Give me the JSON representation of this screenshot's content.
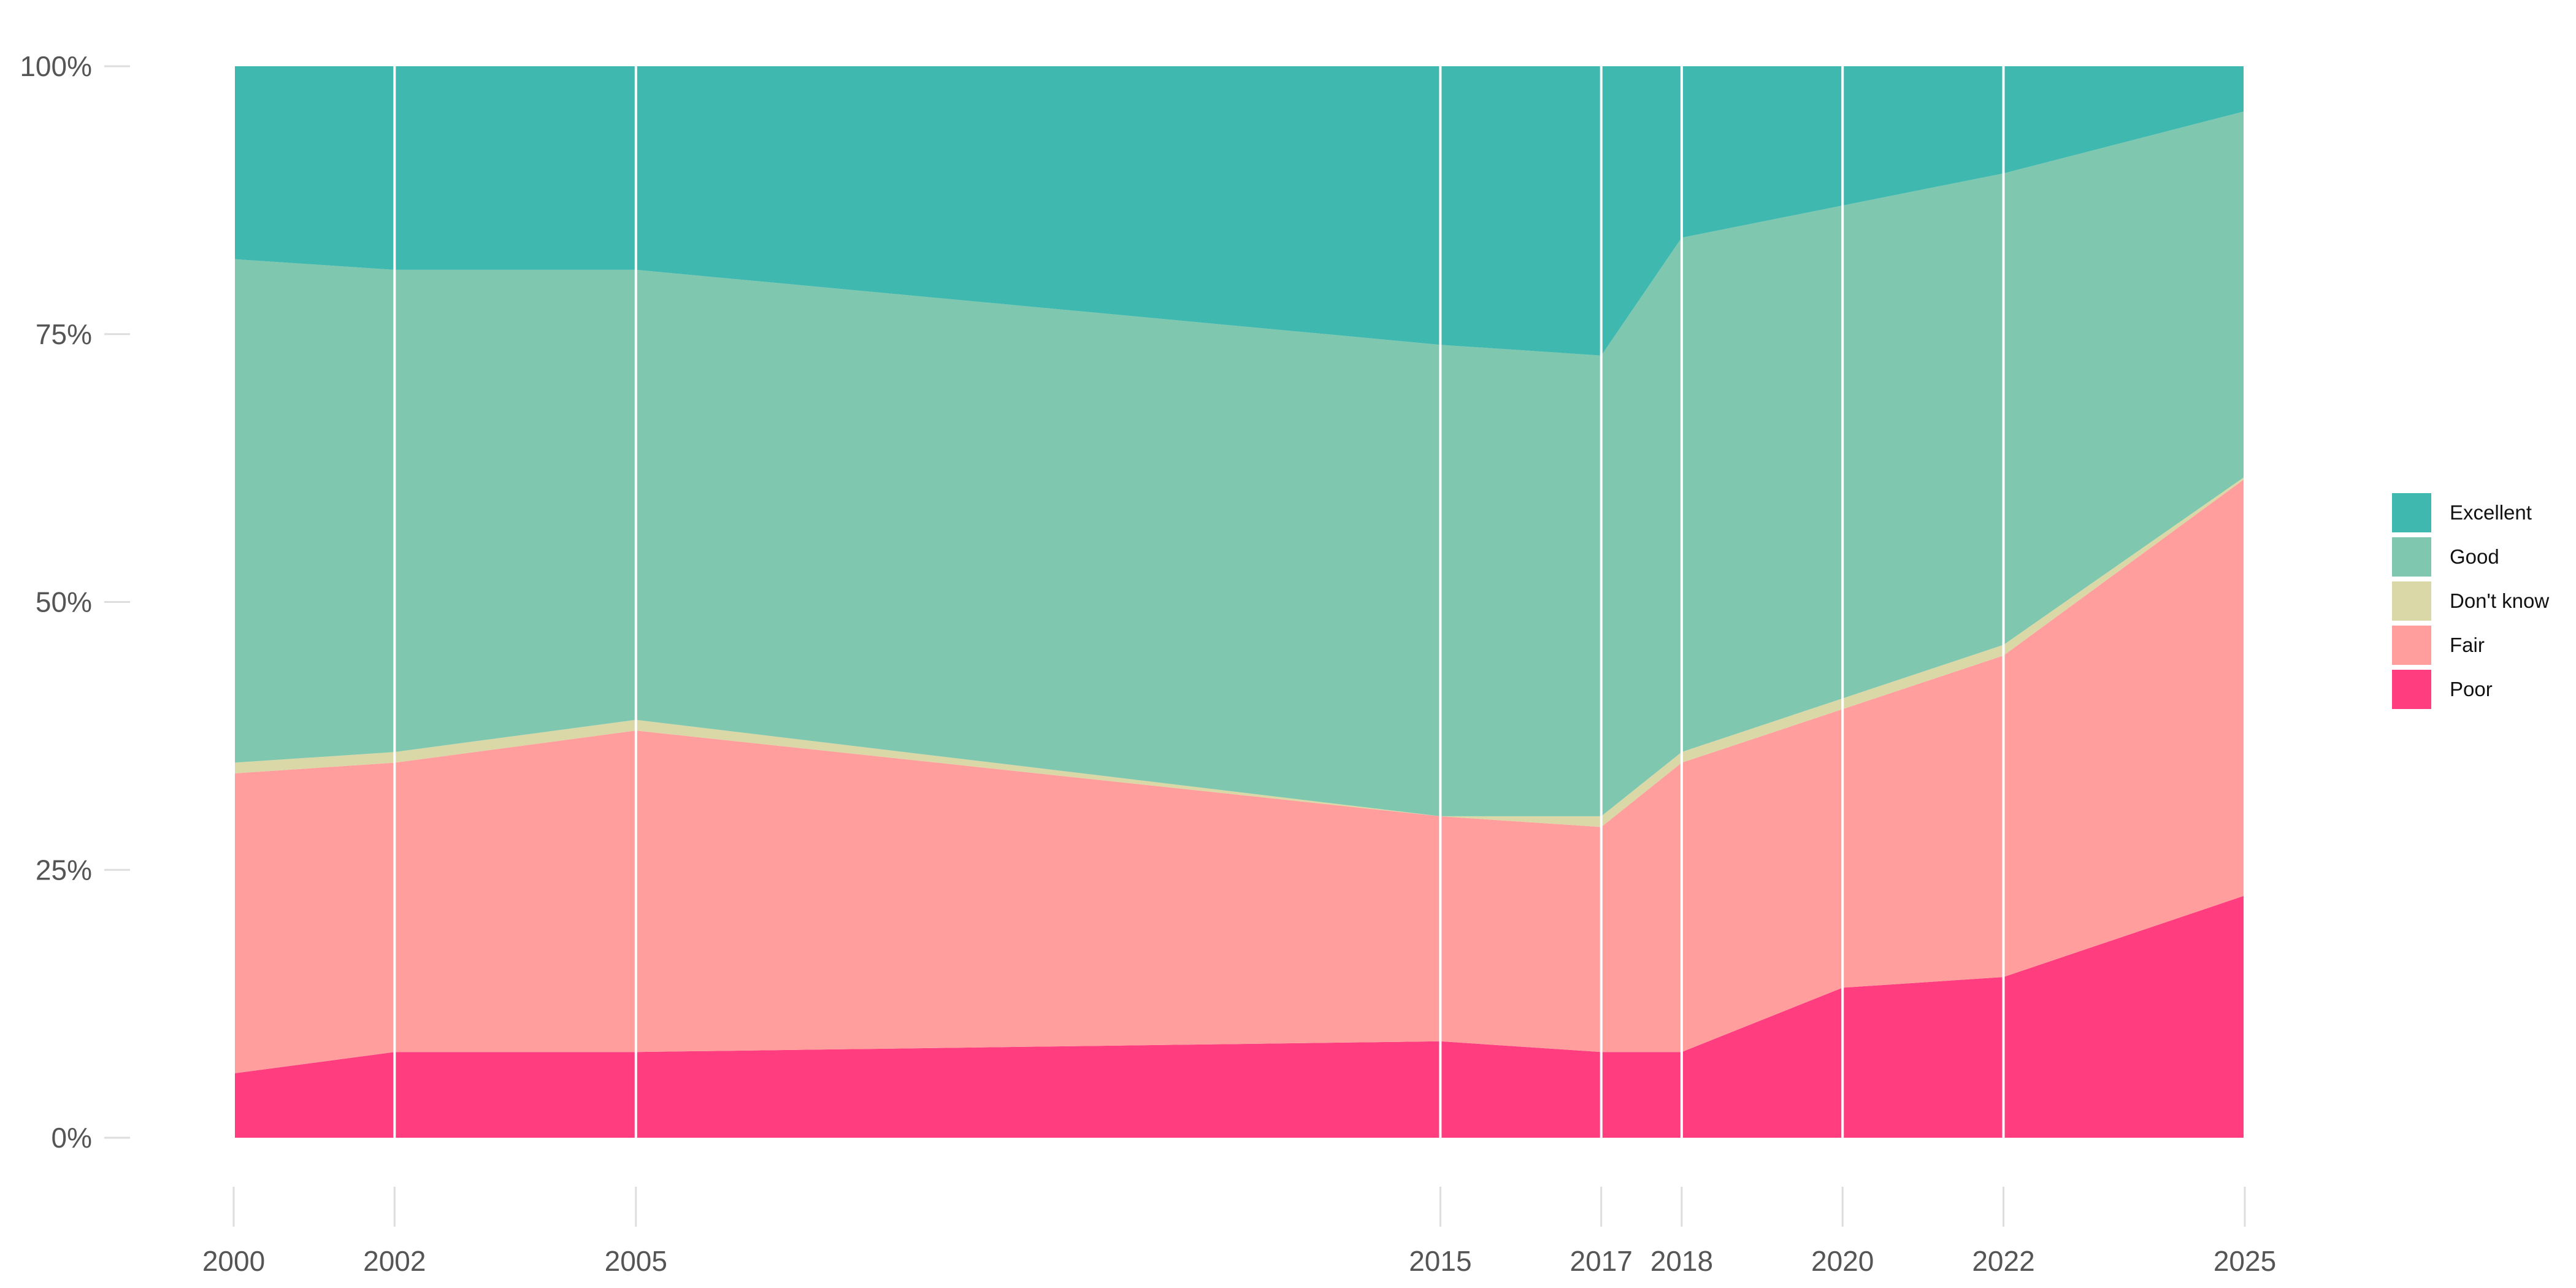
{
  "chart_data": {
    "type": "area",
    "stacked": true,
    "normalized": true,
    "x": [
      2000,
      2002,
      2005,
      2015,
      2017,
      2018,
      2020,
      2022,
      2025
    ],
    "x_tick_labels": [
      "2000",
      "2002",
      "2005",
      "2015",
      "2017",
      "2018",
      "2020",
      "2022",
      "2025"
    ],
    "y_tick_labels": [
      "0%",
      "25%",
      "50%",
      "75%",
      "100%"
    ],
    "y_ticks": [
      0,
      25,
      50,
      75,
      100
    ],
    "ylim": [
      0,
      100
    ],
    "xlim": [
      2000,
      2025
    ],
    "grid": "vertical lines at each x tick",
    "legend_position": "right",
    "series": [
      {
        "name": "Poor",
        "color": "#FF3D7F",
        "values": [
          6,
          8,
          8,
          9,
          8,
          8,
          14,
          15,
          22.6
        ]
      },
      {
        "name": "Fair",
        "color": "#FF9E9D",
        "values": [
          28,
          27,
          30,
          21,
          21,
          27,
          26,
          30,
          38.9
        ]
      },
      {
        "name": "Don't know",
        "color": "#DAD8A7",
        "values": [
          1,
          1,
          1,
          0,
          1,
          1,
          1,
          1,
          0.2
        ]
      },
      {
        "name": "Good",
        "color": "#7FC7AF",
        "values": [
          47,
          45,
          42,
          44,
          43,
          48,
          46,
          44,
          34.1
        ]
      },
      {
        "name": "Excellent",
        "color": "#3FB8AF",
        "values": [
          18,
          19,
          19,
          26,
          27,
          16,
          13,
          10,
          4.2
        ]
      }
    ]
  },
  "legend": {
    "items": [
      {
        "label": "Excellent",
        "color": "#3FB8AF"
      },
      {
        "label": "Good",
        "color": "#7FC7AF"
      },
      {
        "label": "Don't know",
        "color": "#DAD8A7"
      },
      {
        "label": "Fair",
        "color": "#FF9E9D"
      },
      {
        "label": "Poor",
        "color": "#FF3D7F"
      }
    ]
  }
}
